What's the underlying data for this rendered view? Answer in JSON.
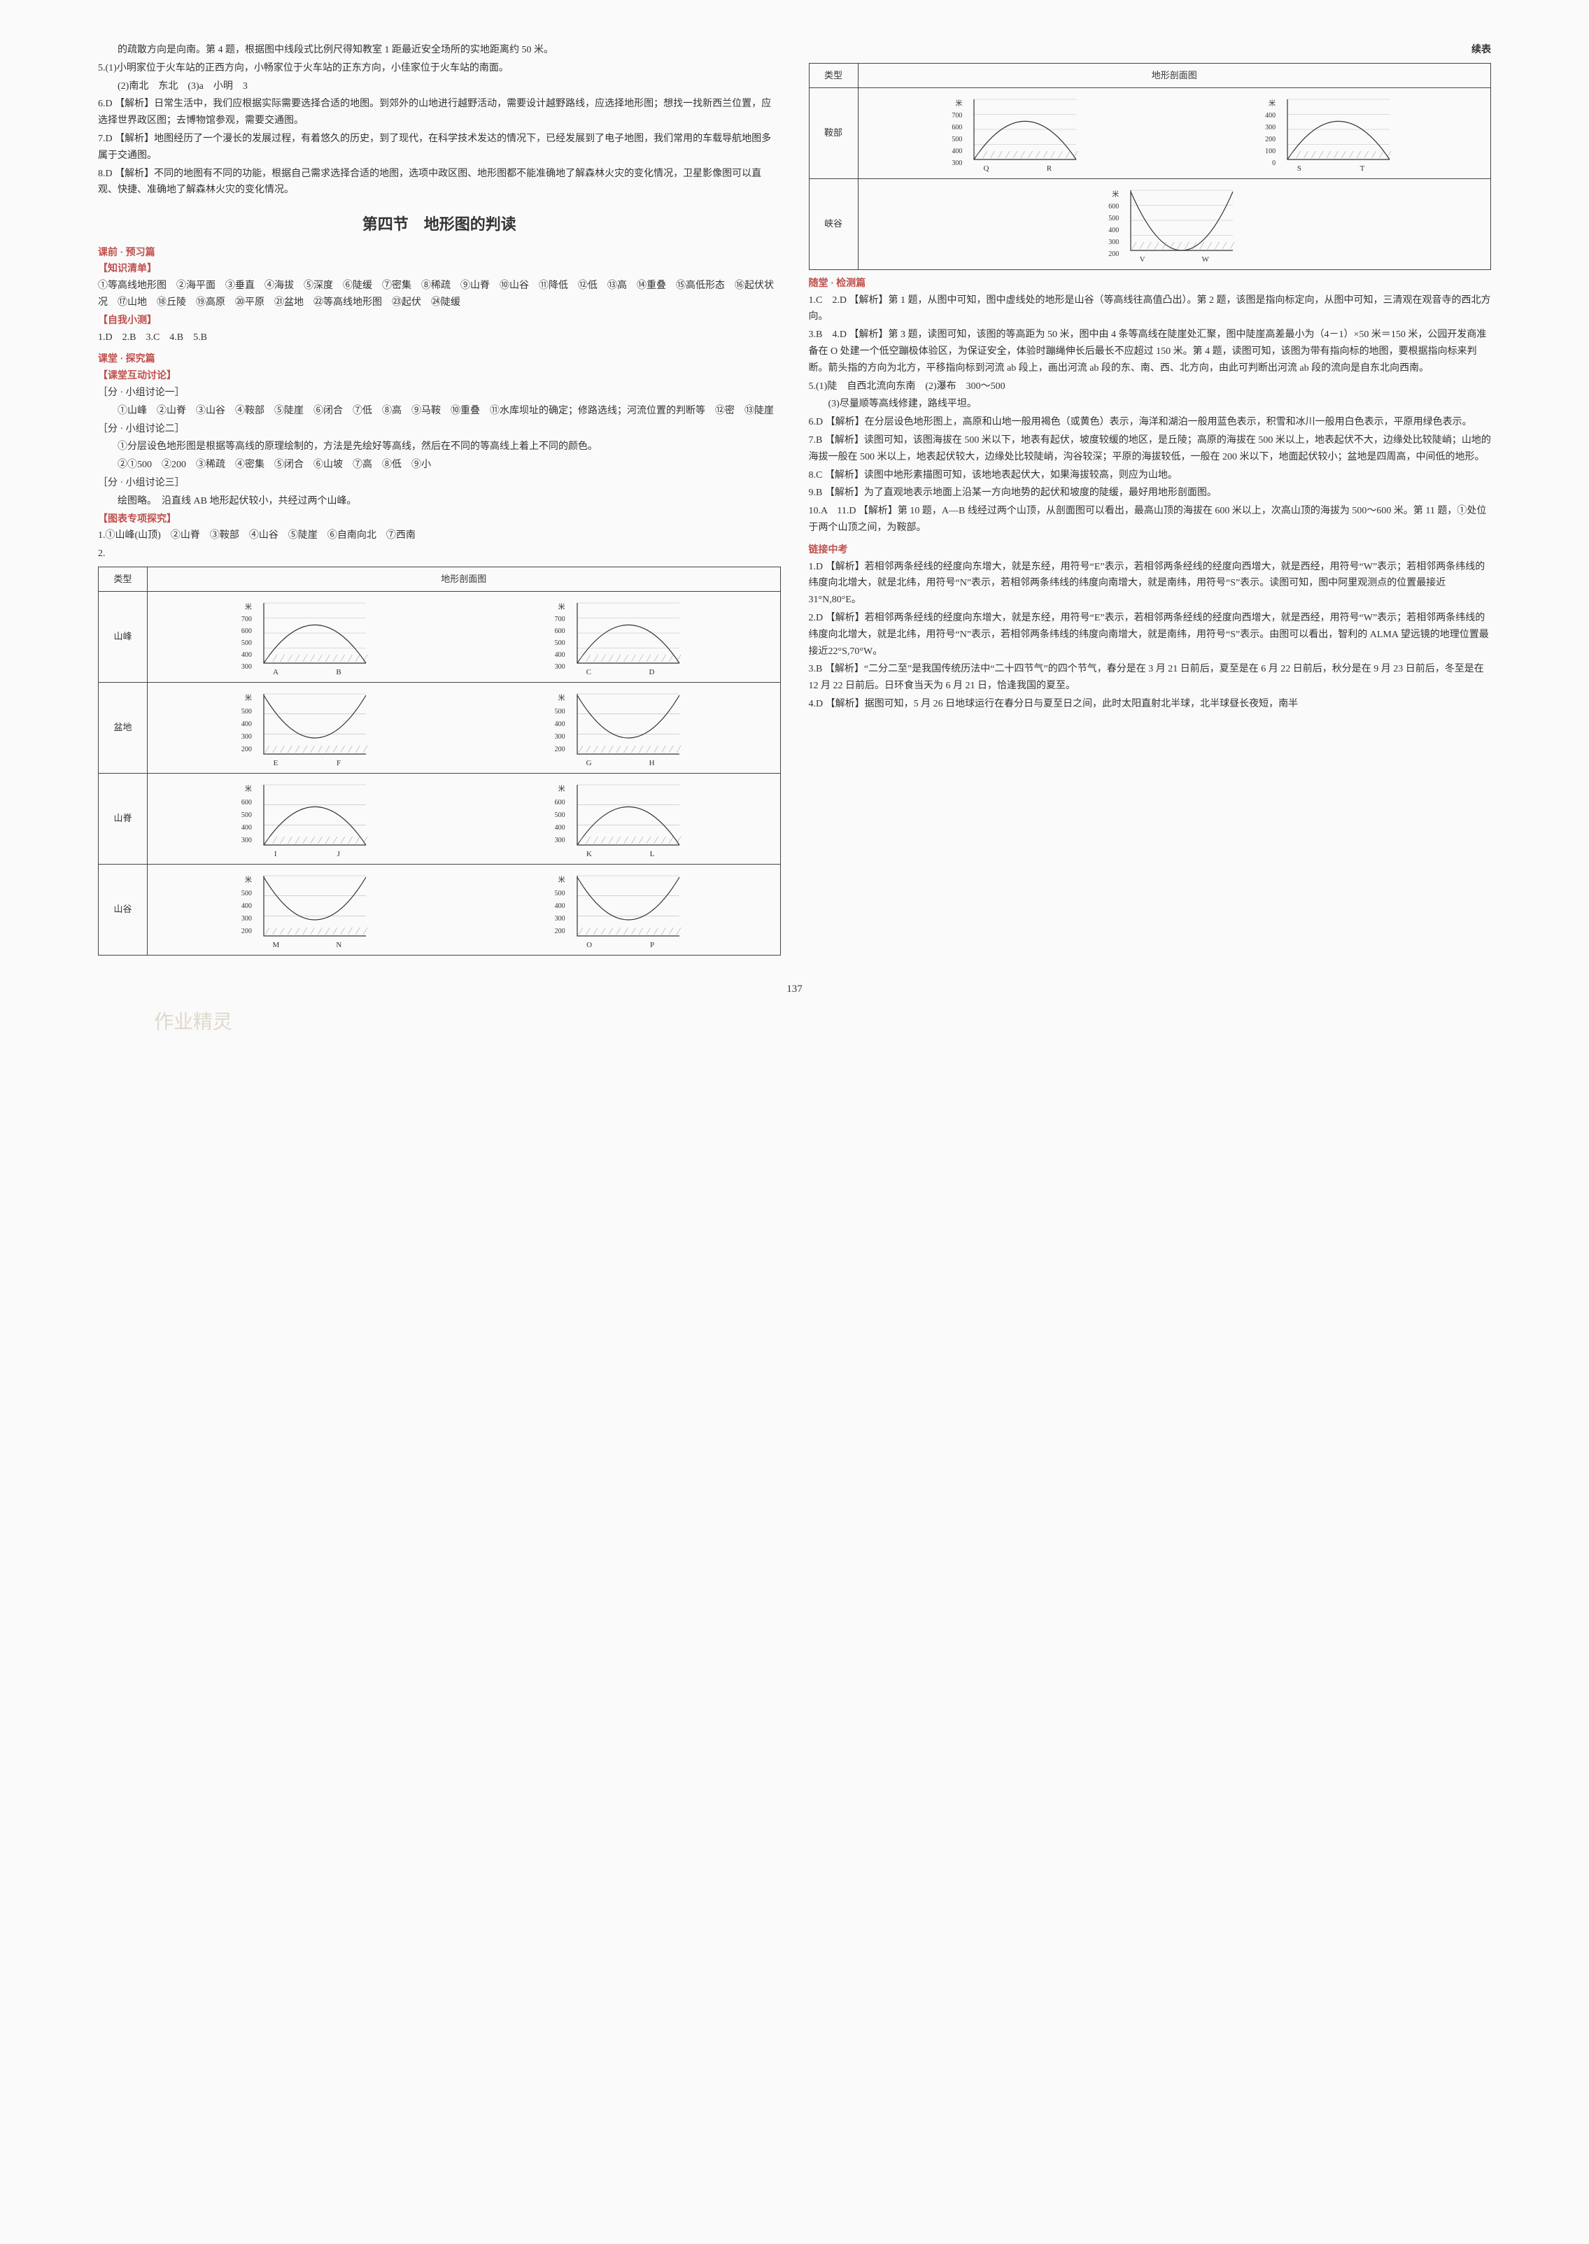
{
  "left": {
    "p1": "的疏散方向是向南。第 4 题，根据图中线段式比例尺得知教室 1 距最近安全场所的实地距离约 50 米。",
    "q5a": "5.(1)小明家位于火车站的正西方向，小畅家位于火车站的正东方向，小佳家位于火车站的南面。",
    "q5b": "(2)南北　东北　(3)a　小明　3",
    "q6": "6.D 【解析】日常生活中，我们应根据实际需要选择合适的地图。到郊外的山地进行越野活动，需要设计越野路线，应选择地形图；想找一找新西兰位置，应选择世界政区图；去博物馆参观，需要交通图。",
    "q7": "7.D 【解析】地图经历了一个漫长的发展过程，有着悠久的历史，到了现代，在科学技术发达的情况下，已经发展到了电子地图，我们常用的车载导航地图多属于交通图。",
    "q8": "8.D 【解析】不同的地图有不同的功能，根据自己需求选择合适的地图，选项中政区图、地形图都不能准确地了解森林火灾的变化情况，卫星影像图可以直观、快捷、准确地了解森林火灾的变化情况。",
    "section": "第四节　地形图的判读",
    "pre_title": "课前 · 预习篇",
    "zsqd": "【知识清单】",
    "zsqd_text": "①等高线地形图　②海平面　③垂直　④海拔　⑤深度　⑥陡缓　⑦密集　⑧稀疏　⑨山脊　⑩山谷　⑪降低　⑫低　⑬高　⑭重叠　⑮高低形态　⑯起伏状况　⑰山地　⑱丘陵　⑲高原　⑳平原　㉑盆地　㉒等高线地形图　㉓起伏　㉔陡缓",
    "zwxc": "【自我小测】",
    "zwxc_ans": "1.D　2.B　3.C　4.B　5.B",
    "ktj_title": "课堂 · 探究篇",
    "kthd": "【课堂互动讨论】",
    "fen1": "［分 · 小组讨论一］",
    "fen1_text": "①山峰　②山脊　③山谷　④鞍部　⑤陡崖　⑥闭合　⑦低　⑧高　⑨马鞍　⑩重叠　⑪水库坝址的确定；修路选线；河流位置的判断等　⑫密　⑬陡崖",
    "fen2": "［分 · 小组讨论二］",
    "fen2_text1": "①分层设色地形图是根据等高线的原理绘制的，方法是先绘好等高线，然后在不同的等高线上着上不同的颜色。",
    "fen2_text2": "②①500　②200　③稀疏　④密集　⑤闭合　⑥山坡　⑦高　⑧低　⑨小",
    "fen3": "［分 · 小组讨论三］",
    "fen3_text": "绘图略。　沿直线 AB 地形起伏较小，共经过两个山峰。",
    "tbzx": "【图表专项探究】",
    "tb1": "1.①山峰(山顶)　②山脊　③鞍部　④山谷　⑤陡崖　⑥自南向北　⑦西南",
    "tb2": "2.",
    "table": {
      "header": [
        "类型",
        "地形剖面图"
      ],
      "rows": [
        {
          "label": "山峰",
          "charts": [
            {
              "ticks": [
                "700",
                "600",
                "500",
                "400",
                "300"
              ],
              "labels": [
                "A",
                "B"
              ],
              "path": "peak"
            },
            {
              "ticks": [
                "700",
                "600",
                "500",
                "400",
                "300"
              ],
              "labels": [
                "C",
                "D"
              ],
              "path": "peak"
            }
          ]
        },
        {
          "label": "盆地",
          "charts": [
            {
              "ticks": [
                "500",
                "400",
                "300",
                "200"
              ],
              "labels": [
                "E",
                "F"
              ],
              "path": "basin"
            },
            {
              "ticks": [
                "500",
                "400",
                "300",
                "200"
              ],
              "labels": [
                "G",
                "H"
              ],
              "path": "basin"
            }
          ]
        },
        {
          "label": "山脊",
          "charts": [
            {
              "ticks": [
                "600",
                "500",
                "400",
                "300"
              ],
              "labels": [
                "I",
                "J"
              ],
              "path": "peak"
            },
            {
              "ticks": [
                "600",
                "500",
                "400",
                "300"
              ],
              "labels": [
                "K",
                "L"
              ],
              "path": "peak"
            }
          ]
        },
        {
          "label": "山谷",
          "charts": [
            {
              "ticks": [
                "500",
                "400",
                "300",
                "200"
              ],
              "labels": [
                "M",
                "N"
              ],
              "path": "basin"
            },
            {
              "ticks": [
                "500",
                "400",
                "300",
                "200"
              ],
              "labels": [
                "O",
                "P"
              ],
              "path": "basin"
            }
          ]
        }
      ]
    }
  },
  "right": {
    "cont": "续表",
    "table": {
      "header": [
        "类型",
        "地形剖面图"
      ],
      "rows": [
        {
          "label": "鞍部",
          "charts": [
            {
              "ticks": [
                "700",
                "600",
                "500",
                "400",
                "300"
              ],
              "labels": [
                "Q",
                "R"
              ],
              "path": "peak"
            },
            {
              "ticks": [
                "400",
                "300",
                "200",
                "100",
                "0"
              ],
              "labels": [
                "S",
                "T"
              ],
              "path": "peak"
            }
          ]
        },
        {
          "label": "峡谷",
          "charts": [
            {
              "ticks": [
                "600",
                "500",
                "400",
                "300",
                "200"
              ],
              "labels": [
                "V",
                "W"
              ],
              "path": "basin_wide"
            }
          ]
        }
      ]
    },
    "st_title": "随堂 · 检测篇",
    "a1": "1.C　2.D 【解析】第 1 题，从图中可知，图中虚线处的地形是山谷（等高线往高值凸出）。第 2 题，该图是指向标定向，从图中可知，三清观在观音寺的西北方向。",
    "a3": "3.B　4.D 【解析】第 3 题，读图可知，该图的等高距为 50 米，图中由 4 条等高线在陡崖处汇聚，图中陡崖高差最小为（4－1）×50 米＝150 米，公园开发商准备在 O 处建一个低空蹦极体验区，为保证安全，体验时蹦绳伸长后最长不应超过 150 米。第 4 题，读图可知，该图为带有指向标的地图，要根据指向标来判断。箭头指的方向为北方，平移指向标到河流 ab 段上，画出河流 ab 段的东、南、西、北方向，由此可判断出河流 ab 段的流向是自东北向西南。",
    "a5a": "5.(1)陡　自西北流向东南　(2)瀑布　300～500",
    "a5b": "(3)尽量顺等高线修建，路线平坦。",
    "a6": "6.D 【解析】在分层设色地形图上，高原和山地一般用褐色（或黄色）表示，海洋和湖泊一般用蓝色表示，积雪和冰川一般用白色表示，平原用绿色表示。",
    "a7": "7.B 【解析】读图可知，该图海拔在 500 米以下，地表有起伏，坡度较缓的地区，是丘陵；高原的海拔在 500 米以上，地表起伏不大，边缘处比较陡峭；山地的海拔一般在 500 米以上，地表起伏较大，边缘处比较陡峭，沟谷较深；平原的海拔较低，一般在 200 米以下，地面起伏较小；盆地是四周高，中间低的地形。",
    "a8": "8.C 【解析】读图中地形素描图可知，该地地表起伏大，如果海拔较高，则应为山地。",
    "a9": "9.B 【解析】为了直观地表示地面上沿某一方向地势的起伏和坡度的陡缓，最好用地形剖面图。",
    "a10": "10.A　11.D 【解析】第 10 题，A—B 线经过两个山顶，从剖面图可以看出，最高山顶的海拔在 600 米以上，次高山顶的海拔为 500～600 米。第 11 题，①处位于两个山顶之间，为鞍部。",
    "lj_title": "链接中考",
    "lj1": "1.D 【解析】若相邻两条经线的经度向东增大，就是东经，用符号“E”表示，若相邻两条经线的经度向西增大，就是西经，用符号“W”表示；若相邻两条纬线的纬度向北增大，就是北纬，用符号“N”表示，若相邻两条纬线的纬度向南增大，就是南纬，用符号“S”表示。读图可知，图中阿里观测点的位置最接近 31°N,80°E。",
    "lj2": "2.D 【解析】若相邻两条经线的经度向东增大，就是东经，用符号“E”表示，若相邻两条经线的经度向西增大，就是西经，用符号“W”表示；若相邻两条纬线的纬度向北增大，就是北纬，用符号“N”表示，若相邻两条纬线的纬度向南增大，就是南纬，用符号“S”表示。由图可以看出，智利的 ALMA 望远镜的地理位置最接近22°S,70°W。",
    "lj3": "3.B 【解析】“二分二至”是我国传统历法中“二十四节气”的四个节气，春分是在 3 月 21 日前后，夏至是在 6 月 22 日前后，秋分是在 9 月 23 日前后，冬至是在 12 月 22 日前后。日环食当天为 6 月 21 日，恰逢我国的夏至。",
    "lj4": "4.D 【解析】据图可知，5 月 26 日地球运行在春分日与夏至日之间，此时太阳直射北半球，北半球昼长夜短，南半"
  },
  "page_num": "137",
  "watermark": "作业精灵",
  "chart": {
    "colors": {
      "line": "#333",
      "axis": "#333",
      "grid": "#bbb",
      "fill": "none",
      "hatch": "#888"
    },
    "stroke_width": 1.2,
    "y_unit": "米",
    "width": 180,
    "height": 90
  }
}
